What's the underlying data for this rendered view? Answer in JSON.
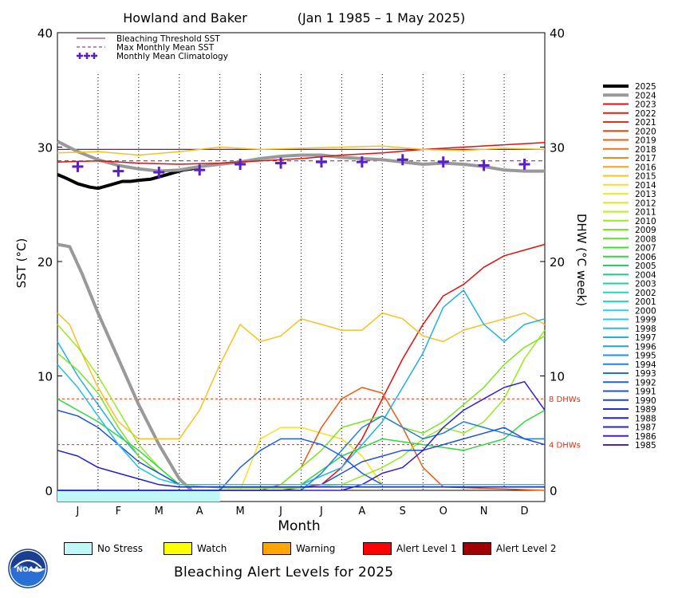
{
  "chart_data": {
    "type": "line",
    "title_site": "Howland and Baker",
    "title_range": "(Jan 1 1985 – 1 May 2025)",
    "xlabel": "Month",
    "ylabel_left": "SST (°C)",
    "ylabel_right": "DHW (°C week)",
    "ylim": [
      0,
      40
    ],
    "yticks": [
      0,
      10,
      20,
      30,
      40
    ],
    "months": [
      "J",
      "F",
      "M",
      "A",
      "M",
      "J",
      "J",
      "A",
      "S",
      "O",
      "N",
      "D"
    ],
    "bleaching_threshold_sst": 29.8,
    "max_monthly_mean_sst": 28.8,
    "dhw_reference_lines": [
      {
        "value": 8,
        "label": "8 DHWs"
      },
      {
        "value": 4,
        "label": "4 DHWs"
      }
    ],
    "chart_legend": [
      {
        "label": "Bleaching Threshold SST",
        "style": "solid",
        "color": "#7a1f5c"
      },
      {
        "label": "Max Monthly Mean SST",
        "style": "dashed",
        "color": "#7a1f5c"
      },
      {
        "label": "Monthly Mean Climatology",
        "style": "plus",
        "color": "#5a1fc8"
      }
    ],
    "climatology": {
      "name": "Monthly Mean Climatology",
      "values": [
        28.3,
        27.9,
        27.8,
        28.0,
        28.5,
        28.6,
        28.7,
        28.7,
        28.9,
        28.7,
        28.4,
        28.5
      ]
    },
    "year_legend": [
      "2025",
      "2024",
      "2023",
      "2022",
      "2021",
      "2020",
      "2019",
      "2018",
      "2017",
      "2016",
      "2015",
      "2014",
      "2013",
      "2012",
      "2011",
      "2010",
      "2009",
      "2008",
      "2007",
      "2006",
      "2005",
      "2004",
      "2003",
      "2002",
      "2001",
      "2000",
      "1999",
      "1998",
      "1997",
      "1996",
      "1995",
      "1994",
      "1993",
      "1992",
      "1991",
      "1990",
      "1989",
      "1988",
      "1987",
      "1986",
      "1985"
    ],
    "year_colors": [
      "#000000",
      "#999999",
      "#e01010",
      "#e41a10",
      "#e63010",
      "#e84610",
      "#ec5c10",
      "#f07020",
      "#f28a20",
      "#f6a020",
      "#f8c020",
      "#f4e020",
      "#e8f020",
      "#d4f020",
      "#b8ee20",
      "#98ea20",
      "#7ae620",
      "#5ae020",
      "#40dc30",
      "#30d840",
      "#20d460",
      "#20d080",
      "#20d0a0",
      "#20d4c0",
      "#20d8d8",
      "#20d4e8",
      "#20cce8",
      "#20c0e8",
      "#20b0e8",
      "#20a0e8",
      "#2090e8",
      "#2080e4",
      "#2070e0",
      "#2060dc",
      "#2050d8",
      "#2040d4",
      "#2030d0",
      "#2020cc",
      "#3020cc",
      "#4020cc",
      "#5020cc"
    ],
    "series": [
      {
        "name": "2025",
        "kind": "sst",
        "color": "#000000",
        "x": [
          0,
          0.2,
          0.5,
          0.8,
          1.0,
          1.3,
          1.6,
          1.8,
          2.0,
          2.3,
          2.6,
          2.9,
          3.1,
          3.3,
          3.5
        ],
        "y": [
          27.6,
          27.3,
          26.8,
          26.5,
          26.4,
          26.7,
          27.0,
          27.0,
          27.1,
          27.2,
          27.5,
          27.8,
          28.0,
          28.1,
          28.3
        ]
      },
      {
        "name": "2024",
        "kind": "sst",
        "color": "#999999",
        "x": [
          0,
          0.5,
          1,
          1.5,
          2,
          2.5,
          3,
          3.5,
          4,
          4.5,
          5,
          5.5,
          6,
          6.5,
          7,
          7.5,
          8,
          8.5,
          9,
          9.5,
          10,
          10.5,
          11,
          11.5,
          12
        ],
        "y": [
          30.5,
          29.6,
          28.9,
          28.4,
          28.1,
          27.9,
          28.0,
          28.3,
          28.5,
          28.7,
          29.0,
          29.2,
          29.3,
          29.3,
          29.1,
          29.0,
          28.9,
          28.7,
          28.5,
          28.6,
          28.5,
          28.3,
          28.0,
          27.9,
          27.9
        ]
      },
      {
        "name": "2024",
        "kind": "dhw",
        "color": "#999999",
        "x": [
          0,
          0.3,
          0.6,
          1.0,
          1.5,
          2.0,
          2.5,
          3.0,
          3.3
        ],
        "y": [
          21.5,
          21.3,
          19.0,
          15.5,
          11.5,
          7.5,
          4.0,
          1.0,
          0
        ]
      },
      {
        "name": "2023",
        "kind": "sst",
        "color": "#e01010",
        "x": [
          0,
          1,
          2,
          3,
          4,
          5,
          6,
          7,
          8,
          9,
          10,
          11,
          12
        ],
        "y": [
          28.7,
          28.8,
          28.6,
          28.5,
          28.6,
          28.8,
          29.0,
          29.3,
          29.5,
          29.8,
          30.0,
          30.2,
          30.4
        ]
      },
      {
        "name": "2023",
        "kind": "dhw",
        "color": "#e01010",
        "x": [
          0,
          5.5,
          6.5,
          7.0,
          7.5,
          8.0,
          8.5,
          9.0,
          9.5,
          10.0,
          10.5,
          11.0,
          11.5,
          12.0
        ],
        "y": [
          0,
          0,
          0.5,
          2.0,
          4.5,
          8.0,
          11.5,
          14.5,
          17.0,
          18.0,
          19.5,
          20.5,
          21.0,
          21.5
        ]
      },
      {
        "name": "2015",
        "kind": "dhw",
        "color": "#f8c020",
        "x": [
          0,
          0.3,
          0.6,
          1.0,
          1.5,
          2.0,
          2.5,
          3.0,
          3.5,
          4.0,
          4.5,
          5.0,
          5.5,
          6.0,
          6.5,
          7.0,
          7.5,
          8.0,
          8.5,
          9.0,
          9.5,
          10.0,
          10.5,
          11.0,
          11.5,
          12.0
        ],
        "y": [
          15.5,
          14.5,
          12.0,
          9.0,
          6.0,
          4.5,
          4.5,
          4.5,
          7.0,
          11.0,
          14.5,
          13.0,
          13.5,
          15.0,
          14.5,
          14.0,
          14.0,
          15.5,
          15.0,
          13.5,
          13.0,
          14.0,
          14.5,
          15.0,
          15.5,
          14.5
        ]
      },
      {
        "name": "2015",
        "kind": "sst",
        "color": "#f8c020",
        "x": [
          0,
          1,
          2,
          3,
          4,
          5,
          6,
          7,
          8,
          9,
          10,
          11,
          12
        ],
        "y": [
          29.5,
          29.6,
          29.3,
          29.6,
          30.0,
          29.8,
          29.9,
          30.0,
          30.1,
          29.8,
          29.7,
          29.9,
          29.8
        ]
      },
      {
        "name": "2014",
        "kind": "dhw",
        "color": "#f4e020",
        "x": [
          0,
          4.5,
          5.0,
          5.5,
          6.0,
          6.5,
          7.0,
          7.5,
          8.0,
          12.0
        ],
        "y": [
          0,
          0,
          4.5,
          5.5,
          5.5,
          5.0,
          4.5,
          3.0,
          0.5,
          0.5
        ]
      },
      {
        "name": "2019",
        "kind": "dhw",
        "color": "#ec5c10",
        "x": [
          0,
          5.0,
          5.5,
          6.0,
          6.5,
          7.0,
          7.5,
          8.0,
          8.5,
          9.0,
          9.5,
          12.0
        ],
        "y": [
          0,
          0,
          0.5,
          2.0,
          5.5,
          8.0,
          9.0,
          8.5,
          5.5,
          2.0,
          0.3,
          0
        ]
      },
      {
        "name": "1997",
        "kind": "dhw",
        "color": "#20b0e8",
        "x": [
          0,
          0.5,
          1.0,
          1.5,
          2.0,
          2.5,
          3.0,
          6.0,
          7.0,
          7.5,
          8.0,
          8.5,
          9.0,
          9.5,
          10.0,
          10.5,
          11.0,
          11.5,
          12.0
        ],
        "y": [
          13.0,
          10.0,
          7.5,
          5.0,
          3.0,
          1.5,
          0.5,
          0.5,
          2.0,
          4.0,
          6.0,
          9.0,
          12.0,
          16.0,
          17.5,
          14.5,
          13.0,
          14.5,
          15.0
        ]
      },
      {
        "name": "2010",
        "kind": "dhw",
        "color": "#98ea20",
        "x": [
          0,
          0.5,
          1.0,
          1.5,
          2.0,
          2.5,
          3.0,
          4.0,
          5.0,
          6.0,
          7.0,
          8.0,
          8.5,
          9.0,
          9.5,
          10.0,
          10.5,
          11.0,
          11.5,
          12.0
        ],
        "y": [
          14.5,
          12.5,
          10.0,
          7.0,
          4.0,
          2.0,
          0.5,
          0.2,
          0.2,
          0.2,
          0.5,
          2.0,
          3.0,
          4.5,
          5.5,
          5.0,
          6.0,
          8.0,
          11.5,
          14.0
        ]
      },
      {
        "name": "2009",
        "kind": "dhw",
        "color": "#7ae620",
        "x": [
          0,
          0.5,
          1.0,
          1.5,
          2.0,
          2.5,
          3.0,
          5.5,
          6.5,
          7.0,
          7.5,
          8.0,
          8.5,
          9.0,
          9.5,
          10.0,
          10.5,
          11.0,
          11.5,
          12.0
        ],
        "y": [
          12.0,
          10.5,
          8.5,
          5.5,
          3.0,
          1.5,
          0.5,
          0.5,
          3.5,
          5.5,
          6.0,
          6.5,
          5.5,
          5.0,
          6.0,
          7.5,
          9.0,
          11.0,
          12.5,
          13.5
        ]
      },
      {
        "name": "2006",
        "kind": "dhw",
        "color": "#30d840",
        "x": [
          0,
          1.0,
          2.0,
          2.5,
          3.0,
          6.0,
          7.0,
          8.0,
          9.0,
          10.0,
          11.0,
          11.5,
          12.0
        ],
        "y": [
          8.0,
          6.0,
          3.5,
          2.0,
          0.5,
          0.5,
          3.0,
          4.5,
          4.0,
          3.5,
          4.5,
          6.0,
          7.0
        ]
      },
      {
        "name": "1994",
        "kind": "dhw",
        "color": "#2080e4",
        "x": [
          0,
          6.0,
          6.5,
          7.0,
          7.5,
          8.0,
          8.5,
          9.0,
          9.5,
          10.0,
          10.5,
          11.0,
          11.5,
          12.0
        ],
        "y": [
          0,
          0,
          1.5,
          3.5,
          5.5,
          6.5,
          5.5,
          4.5,
          5.0,
          6.0,
          5.5,
          5.0,
          4.5,
          4.5
        ]
      },
      {
        "name": "1992",
        "kind": "dhw",
        "color": "#2060dc",
        "x": [
          0,
          4.0,
          4.5,
          5.0,
          5.5,
          6.0,
          6.5,
          7.0,
          7.5,
          8.0,
          9.0,
          10.0,
          11.0,
          12.0
        ],
        "y": [
          0,
          0,
          2.0,
          3.5,
          4.5,
          4.5,
          4.0,
          3.0,
          1.5,
          0.5,
          0.5,
          0.5,
          0.5,
          0.5
        ]
      },
      {
        "name": "1991",
        "kind": "dhw",
        "color": "#2050d8",
        "x": [
          0,
          0.5,
          1.0,
          1.5,
          2.0,
          3.0,
          6.5,
          7.0,
          7.5,
          8.0,
          8.5,
          9.0,
          9.5,
          10.0,
          10.5,
          11.0,
          11.5,
          12.0
        ],
        "y": [
          7.0,
          6.5,
          5.5,
          4.0,
          2.5,
          0.5,
          0.5,
          1.5,
          2.5,
          3.0,
          3.5,
          3.5,
          4.0,
          4.5,
          5.0,
          5.5,
          4.5,
          4.0
        ]
      },
      {
        "name": "1987",
        "kind": "dhw",
        "color": "#3020cc",
        "x": [
          0,
          7.0,
          7.5,
          8.0,
          8.5,
          9.0,
          9.5,
          10.0,
          10.5,
          11.0,
          11.5,
          12.0
        ],
        "y": [
          0,
          0,
          0.5,
          1.5,
          2.0,
          3.5,
          5.5,
          7.0,
          8.0,
          9.0,
          9.5,
          7.0
        ]
      },
      {
        "name": "1988",
        "kind": "dhw",
        "color": "#2020cc",
        "x": [
          0,
          0.5,
          1.0,
          1.5,
          2.0,
          2.5,
          3.0,
          12.0
        ],
        "y": [
          3.5,
          3.0,
          2.0,
          1.5,
          1.0,
          0.5,
          0.3,
          0.3
        ]
      },
      {
        "name": "1998",
        "kind": "dhw",
        "color": "#20c0e8",
        "x": [
          0,
          0.5,
          1.0,
          1.5,
          2.0,
          2.5,
          3.0,
          12.0
        ],
        "y": [
          11.0,
          9.0,
          6.5,
          4.0,
          2.0,
          1.0,
          0.5,
          0.5
        ]
      }
    ]
  },
  "bottom_legend": {
    "title": "Bleaching Alert Levels for 2025",
    "items": [
      {
        "label": "No Stress",
        "color": "#c0f8f8"
      },
      {
        "label": "Watch",
        "color": "#ffff00"
      },
      {
        "label": "Warning",
        "color": "#ffa500"
      },
      {
        "label": "Alert Level 1",
        "color": "#ff0000"
      },
      {
        "label": "Alert Level 2",
        "color": "#a00000"
      }
    ],
    "alert_bar_color": "#c0f8f8"
  },
  "logo": {
    "text": "NOAA",
    "icon": "noaa-logo-icon"
  }
}
